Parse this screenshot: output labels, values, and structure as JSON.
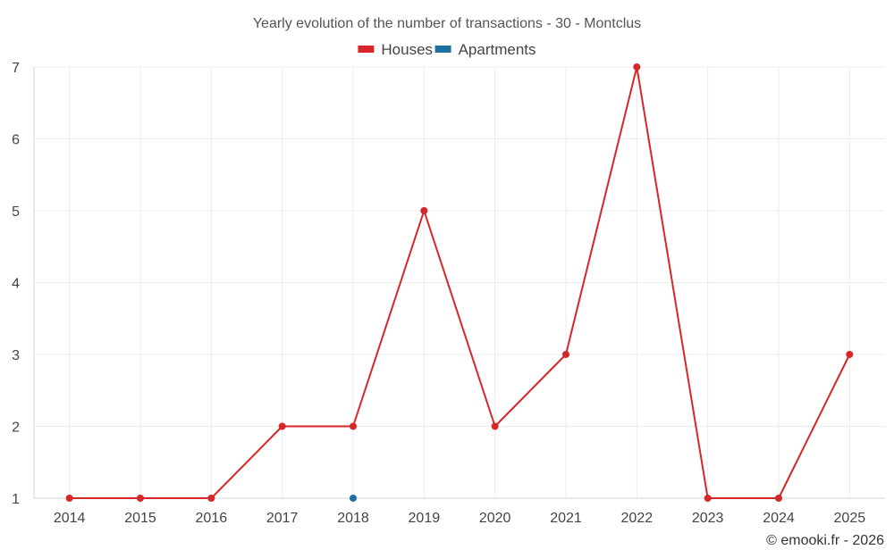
{
  "chart_data": {
    "type": "line",
    "title": "Yearly evolution of the number of transactions - 30 - Montclus",
    "xlabel": "",
    "ylabel": "",
    "categories": [
      "2014",
      "2015",
      "2016",
      "2017",
      "2018",
      "2019",
      "2020",
      "2021",
      "2022",
      "2023",
      "2024",
      "2025"
    ],
    "y_ticks": [
      "1",
      "2",
      "3",
      "4",
      "5",
      "6",
      "7"
    ],
    "ylim": [
      1,
      7
    ],
    "grid": true,
    "legend_position": "top-center",
    "series": [
      {
        "name": "Houses",
        "color": "#d62728",
        "values": [
          1,
          1,
          1,
          2,
          2,
          5,
          2,
          3,
          7,
          1,
          1,
          3
        ]
      },
      {
        "name": "Apartments",
        "color": "#1f6fa0",
        "values": [
          null,
          null,
          null,
          null,
          1,
          null,
          null,
          null,
          null,
          null,
          null,
          null
        ]
      }
    ]
  },
  "credit": "© emooki.fr - 2026"
}
